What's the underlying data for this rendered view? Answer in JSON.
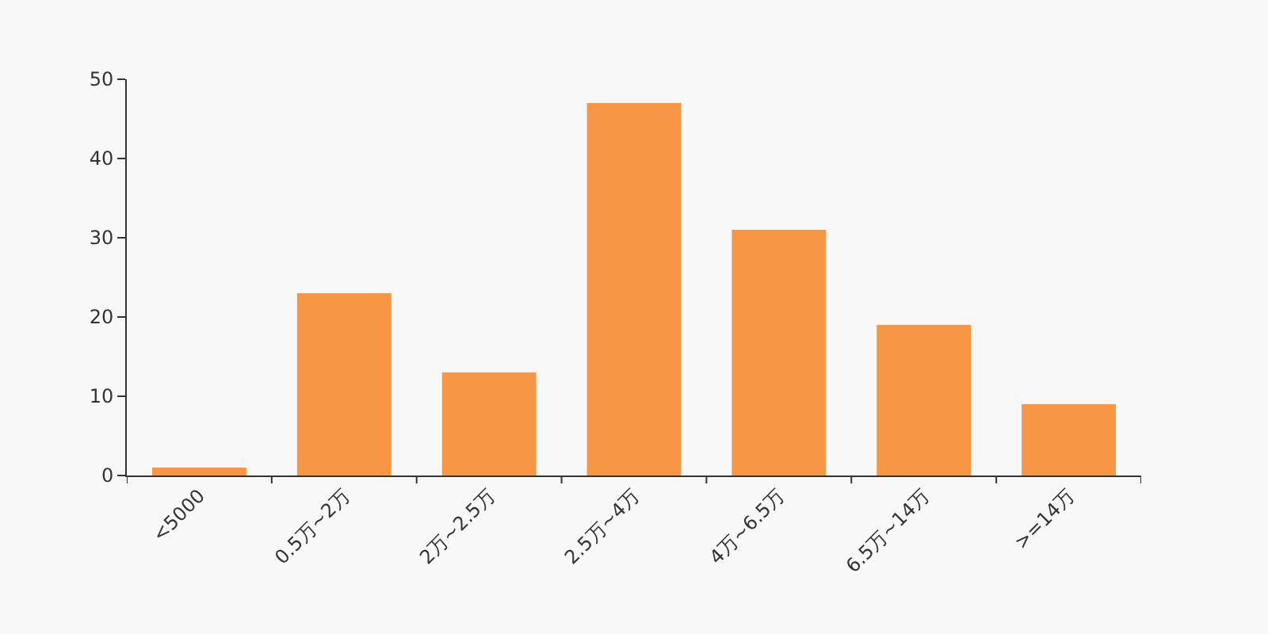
{
  "chart_data": {
    "type": "bar",
    "categories": [
      "<5000",
      "0.5万~2万",
      "2万~2.5万",
      "2.5万~4万",
      "4万~6.5万",
      "6.5万~14万",
      ">=14万"
    ],
    "values": [
      1,
      23,
      13,
      47,
      31,
      19,
      9
    ],
    "color": "#f79746",
    "ylim": [
      0,
      50
    ],
    "yticks": [
      0,
      10,
      20,
      30,
      40,
      50
    ],
    "grid": false,
    "legend": false
  }
}
